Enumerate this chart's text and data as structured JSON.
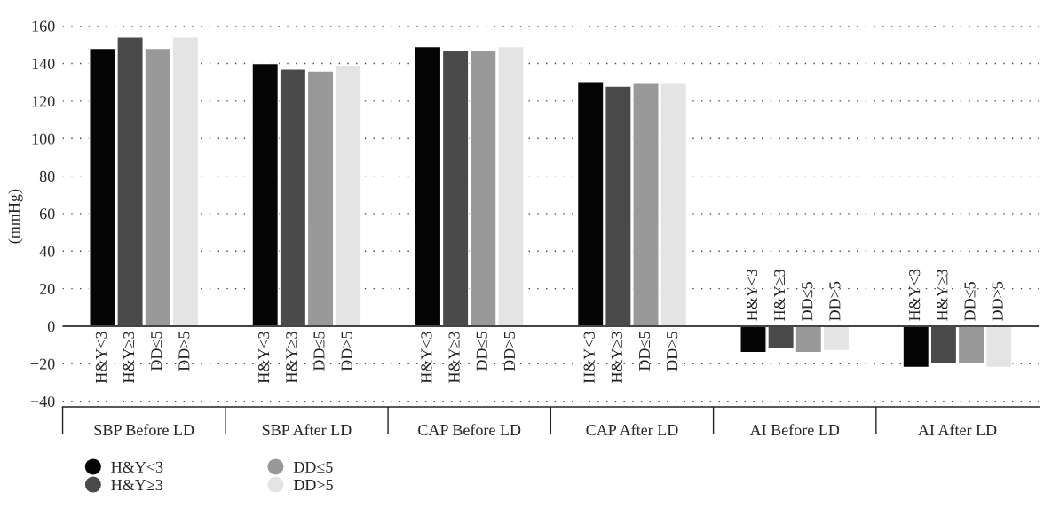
{
  "chart_data": {
    "type": "bar",
    "ylabel": "(mmHg)",
    "categories": [
      "SBP Before LD",
      "SBP After LD",
      "CAP Before LD",
      "CAP After LD",
      "AI Before LD",
      "AI After LD"
    ],
    "series": [
      {
        "name": "H&Y<3",
        "color": "#050505",
        "values": [
          148,
          140,
          149,
          130,
          -14,
          -22
        ]
      },
      {
        "name": "H&Y≥3",
        "color": "#4a4a4a",
        "values": [
          154,
          137,
          147,
          128,
          -12,
          -20
        ]
      },
      {
        "name": "DD≤5",
        "color": "#999999",
        "values": [
          148,
          136,
          147,
          129.5,
          -14,
          -20
        ]
      },
      {
        "name": "DD>5",
        "color": "#e3e4e3",
        "values": [
          154,
          139,
          149,
          129.5,
          -13,
          -22
        ]
      }
    ],
    "ylim": [
      -43,
      160
    ],
    "yticks": [
      -40,
      -20,
      0,
      20,
      40,
      60,
      80,
      100,
      120,
      140,
      160
    ],
    "ref_lines": [
      {
        "axis": "y",
        "value": 0
      }
    ],
    "grid": "y",
    "legend": "bottom left"
  }
}
